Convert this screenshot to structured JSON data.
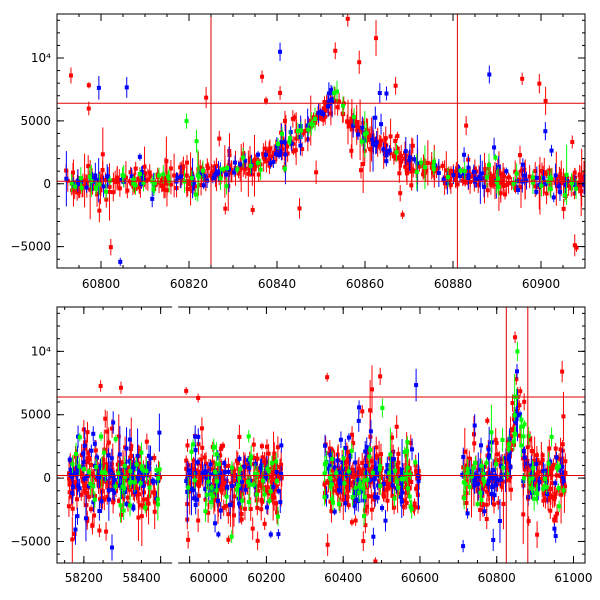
{
  "chart_data": [
    {
      "type": "scatter",
      "title": "",
      "xlabel": "",
      "ylabel": "",
      "xlim": [
        60790,
        60910
      ],
      "ylim": [
        -6700,
        13500
      ],
      "x_ticks": [
        {
          "value": 60800,
          "label": "60800"
        },
        {
          "value": 60820,
          "label": "60820"
        },
        {
          "value": 60840,
          "label": "60840"
        },
        {
          "value": 60860,
          "label": "60860"
        },
        {
          "value": 60880,
          "label": "60880"
        },
        {
          "value": 60900,
          "label": "60900"
        }
      ],
      "y_ticks": [
        {
          "value": -5000,
          "label": "−5000"
        },
        {
          "value": 0,
          "label": "0"
        },
        {
          "value": 5000,
          "label": "5000"
        },
        {
          "value": 10000,
          "label": "10⁴"
        }
      ],
      "hlines": [
        200,
        6400
      ],
      "vlines": [
        60825,
        60881
      ],
      "series": [
        {
          "name": "red",
          "color": "#ff0000",
          "seed": 11,
          "n": 520
        },
        {
          "name": "blue",
          "color": "#0000ff",
          "seed": 23,
          "n": 150
        },
        {
          "name": "green",
          "color": "#00ff00",
          "seed": 37,
          "n": 90
        }
      ],
      "model": {
        "baseline": 0,
        "peak_center": 60853,
        "peak_height": 7000,
        "rise_width": 13,
        "fall_width": 12,
        "scatter": 600
      }
    },
    {
      "type": "scatter",
      "title": "",
      "xlabel": "",
      "ylabel": "",
      "xlim": [
        58130,
        61030
      ],
      "ylim": [
        -6700,
        13500
      ],
      "x_ticks": [
        {
          "value": 58200,
          "label": "58200"
        },
        {
          "value": 58400,
          "label": "58400"
        },
        {
          "value": 60000,
          "label": "60000"
        },
        {
          "value": 60200,
          "label": "60200"
        },
        {
          "value": 60400,
          "label": "60400"
        },
        {
          "value": 60600,
          "label": "60600"
        },
        {
          "value": 60800,
          "label": "60800"
        },
        {
          "value": 61000,
          "label": "61000"
        }
      ],
      "y_ticks": [
        {
          "value": -5000,
          "label": "−5000"
        },
        {
          "value": 0,
          "label": "0"
        },
        {
          "value": 5000,
          "label": "5000"
        },
        {
          "value": 10000,
          "label": "10⁴"
        }
      ],
      "hlines": [
        200,
        6400
      ],
      "vlines": [
        60825,
        60881
      ],
      "axis_break": {
        "from": 58430,
        "to": 59970
      },
      "segments": [
        [
          58160,
          58400
        ],
        [
          59990,
          60240
        ],
        [
          60350,
          60600
        ],
        [
          60710,
          60980
        ]
      ],
      "series": [
        {
          "name": "red",
          "color": "#ff0000",
          "seed": 51,
          "n": 900
        },
        {
          "name": "blue",
          "color": "#0000ff",
          "seed": 63,
          "n": 320
        },
        {
          "name": "green",
          "color": "#00ff00",
          "seed": 77,
          "n": 200
        }
      ],
      "model": {
        "baseline": 0,
        "peak_center": 60853,
        "peak_height": 7000,
        "rise_width": 13,
        "fall_width": 12,
        "scatter": 1800
      }
    }
  ]
}
